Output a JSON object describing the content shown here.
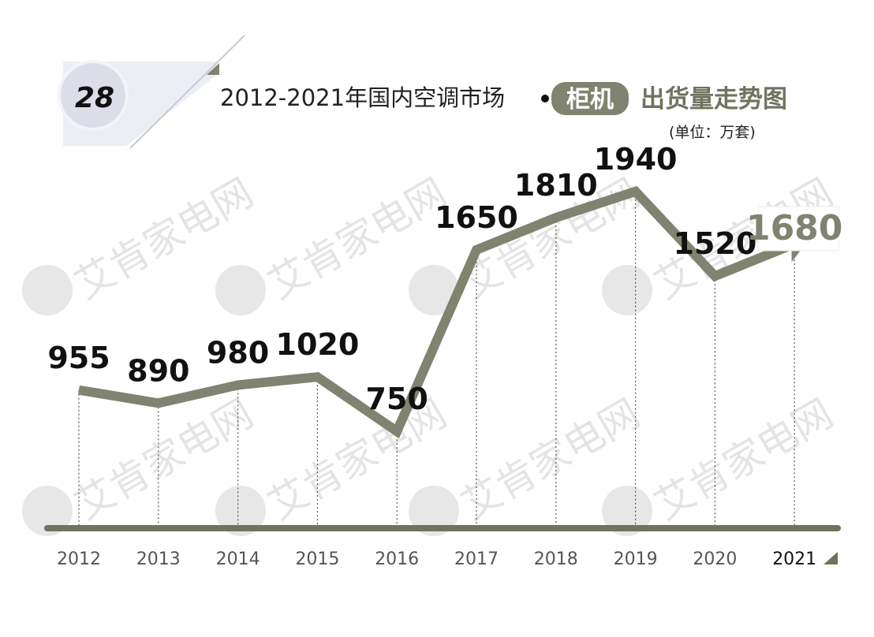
{
  "header": {
    "badge_number": "28",
    "title_prefix": "2012-2021年国内空调市场",
    "title_highlight": "柜机",
    "title_suffix": "出货量走势图",
    "unit": "(单位：万套)"
  },
  "watermark": {
    "text": "艾肯家电网",
    "icon": "aiken-logo-icon"
  },
  "colors": {
    "line": "#7f836f",
    "highlight_box": "#7f836f",
    "badge_fill": "#e1e2ee",
    "grid": "#555555"
  },
  "chart_data": {
    "type": "line",
    "title": "2012-2021年国内空调市场柜机出货量走势图",
    "ylabel": "(单位：万套)",
    "xlabel": "",
    "categories": [
      "2012",
      "2013",
      "2014",
      "2015",
      "2016",
      "2017",
      "2018",
      "2019",
      "2020",
      "2021"
    ],
    "values": [
      955,
      890,
      980,
      1020,
      750,
      1650,
      1810,
      1940,
      1520,
      1680
    ],
    "value_labels": [
      "955",
      "890",
      "980",
      "1020",
      "750",
      "1650",
      "1810",
      "1940",
      "1520",
      "1680"
    ],
    "ylim": [
      0,
      2200
    ],
    "grid": false,
    "legend": "none",
    "last_point_arrow": true
  }
}
